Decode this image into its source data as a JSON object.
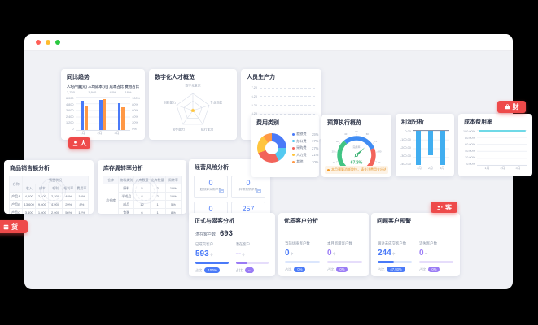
{
  "window": {
    "traffic_lights": [
      "#ff5f57",
      "#febc2e",
      "#2ac840"
    ]
  },
  "badges": {
    "people": "人",
    "finance": "财",
    "goods": "货",
    "customer": "客"
  },
  "hr_trend": {
    "title": "同比趋势",
    "stats": [
      {
        "label": "人均产值(元)",
        "value": "2,750"
      },
      {
        "label": "人均成本(元)",
        "value": "1,940"
      },
      {
        "label": "成本占比",
        "value": "42%"
      },
      {
        "label": "费用占比",
        "value": "18%"
      }
    ],
    "chart_data": {
      "type": "bar",
      "categories": [
        "1月",
        "2月",
        "3月"
      ],
      "series": [
        {
          "name": "收入",
          "color": "#4a7af8",
          "values": [
            5200,
            5400,
            4800
          ]
        },
        {
          "name": "成本",
          "color": "#ff9845",
          "values": [
            4400,
            5600,
            4100
          ]
        }
      ],
      "ymax": 6000,
      "yticks_left": [
        "6,000",
        "4,800",
        "3,600",
        "2,400",
        "1,200",
        "0"
      ],
      "yticks_right": [
        "100%",
        "80%",
        "60%",
        "40%",
        "20%",
        "0%"
      ]
    }
  },
  "hr_radar": {
    "title": "数字化人才概览",
    "axes": [
      "数字化意识",
      "专业技能",
      "执行能力",
      "协作能力",
      "创新能力"
    ]
  },
  "hr_productivity": {
    "title": "人员生产力",
    "yticks": [
      "7.20",
      "6.20",
      "5.20",
      "4.20",
      "3.20",
      "2.20"
    ]
  },
  "fin_category": {
    "title": "费用类别",
    "chart_data": {
      "type": "pie",
      "legend": [
        {
          "name": "差旅费",
          "pct": "25%",
          "value": 25,
          "color": "#4a7af8"
        },
        {
          "name": "办公费",
          "pct": "17%",
          "value": 17,
          "color": "#54c9f0"
        },
        {
          "name": "采购费",
          "pct": "27%",
          "value": 27,
          "color": "#f2635a"
        },
        {
          "name": "人力费",
          "pct": "21%",
          "value": 21,
          "color": "#ffc53d"
        },
        {
          "name": "其他",
          "pct": "10%",
          "value": 10,
          "color": "#ff9845"
        }
      ]
    }
  },
  "fin_budget": {
    "title": "预算执行概览",
    "label": "完成率",
    "value": "67.3%",
    "percent": 67.3,
    "ticks": [
      "0",
      "10",
      "20",
      "30",
      "40",
      "50",
      "60",
      "70",
      "80",
      "90",
      "100"
    ],
    "segments": [
      {
        "to": 0.35,
        "color": "#41c484"
      },
      {
        "to": 0.75,
        "color": "#3f8cf3"
      },
      {
        "to": 1,
        "color": "#f2635a"
      }
    ],
    "alert": "本月预算消耗较快，请关注费用支出进度"
  },
  "fin_profit": {
    "title": "利润分析",
    "chart_data": {
      "type": "bar",
      "categories": [
        "1月",
        "2月",
        "3月"
      ],
      "values": [
        -390,
        -275,
        -390
      ],
      "ymin": -400,
      "yticks": [
        "0.00",
        "-100.00",
        "-200.00",
        "-300.00",
        "-400.00"
      ],
      "color": "#41aef0"
    }
  },
  "fin_cost_rate": {
    "title": "成本费用率",
    "chart_data": {
      "type": "line",
      "categories": [
        "1月",
        "2月",
        "3月"
      ],
      "values": [
        100,
        100,
        100
      ],
      "yticks": [
        "100.00%",
        "80.00%",
        "60.00%",
        "40.00%",
        "20.00%",
        "0.00%"
      ],
      "color": "#6fd9e7"
    }
  },
  "goods_sales": {
    "title": "商品销售额分析",
    "col_name": "名称",
    "group_header": "销售状况",
    "cols": [
      "收入",
      "成本",
      "毛利",
      "毛利率",
      "费用率"
    ],
    "rows": [
      [
        "产品A",
        "4,600",
        "2,400",
        "2,200",
        "48%",
        "10%"
      ],
      [
        "产品B",
        "13,600",
        "9,600",
        "4,000",
        "29%",
        "8%"
      ],
      [
        "产品C",
        "3,600",
        "1,600",
        "2,000",
        "56%",
        "12%"
      ]
    ]
  },
  "goods_turnover": {
    "title": "库存周转率分析",
    "cols": [
      "仓库",
      "物料类别",
      "入库数量",
      "出库数量",
      "周转率"
    ],
    "warehouse": "总仓库",
    "rows": [
      [
        "原料",
        "5",
        "2",
        "10%"
      ],
      [
        "半成品",
        "8",
        "2",
        "10%"
      ],
      [
        "成品",
        "12",
        "1",
        "5%"
      ],
      [
        "包装",
        "6",
        "1",
        "8%"
      ]
    ]
  },
  "risk": {
    "title": "经营风险分析",
    "boxes": [
      {
        "value": "0",
        "label": "超预算采购单数",
        "icon": true
      },
      {
        "value": "0",
        "label": "异常报销单数",
        "icon": true
      },
      {
        "value": "0",
        "label": "逾期审批单数",
        "icon": false
      },
      {
        "value": "257",
        "label": "本月审批单数",
        "icon": false
      }
    ]
  },
  "cust_convert": {
    "title": "正式与潜客分析",
    "lead_label": "潜在客户数",
    "lead_value": "693",
    "cols": [
      {
        "label": "已成交客户",
        "value": "593",
        "unit": "个",
        "ratio": "占比",
        "pill": "100%",
        "bar": 100,
        "theme": "blue"
      },
      {
        "label": "潜在客户",
        "value": "--",
        "unit": "个",
        "ratio": "占比",
        "pill": "--",
        "bar": 35,
        "theme": "purple"
      }
    ]
  },
  "cust_quality": {
    "title": "优质客户分析",
    "cols": [
      {
        "label": "当前优质客户数",
        "value": "0",
        "unit": "个",
        "ratio": "占比",
        "pill": "0%",
        "bar": 0,
        "theme": "blue"
      },
      {
        "label": "本月新增客户数",
        "value": "0",
        "unit": "个",
        "ratio": "占比",
        "pill": "0%",
        "bar": 0,
        "theme": "purple"
      }
    ]
  },
  "cust_warning": {
    "title": "问题客户预警",
    "cols": [
      {
        "label": "跟进未成交客户数",
        "value": "244",
        "unit": "个",
        "ratio": "占比",
        "pill": "47.93%",
        "bar": 48,
        "theme": "blue"
      },
      {
        "label": "流失客户数",
        "value": "0",
        "unit": "个",
        "ratio": "占比",
        "pill": "0%",
        "bar": 0,
        "theme": "purple"
      }
    ]
  }
}
